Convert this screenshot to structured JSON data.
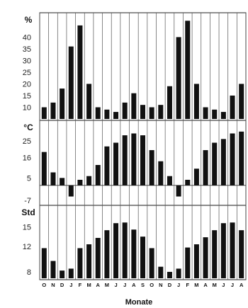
{
  "chart_data": {
    "type": "bar",
    "xlabel": "Monate",
    "categories": [
      "O",
      "N",
      "D",
      "J",
      "F",
      "M",
      "A",
      "M",
      "J",
      "J",
      "A",
      "S",
      "O",
      "N",
      "D",
      "J",
      "F",
      "M",
      "A",
      "M",
      "J",
      "J",
      "A"
    ],
    "panels": [
      {
        "name": "precipitation",
        "unit_label": "%",
        "yticks": [
          10,
          15,
          20,
          25,
          30,
          35,
          40
        ],
        "ylim": [
          5,
          48
        ],
        "baseline": 5,
        "values": [
          10,
          12,
          18,
          36,
          45,
          20,
          10,
          9,
          8,
          12,
          16,
          11,
          10,
          11,
          19,
          40,
          47,
          20,
          10,
          9,
          8,
          15,
          20
        ]
      },
      {
        "name": "temperature",
        "unit_label": "°C",
        "yticks": [
          -7,
          5,
          16,
          25
        ],
        "ylim": [
          -9,
          33
        ],
        "baseline": 1,
        "values": [
          19,
          8,
          5,
          -5,
          4,
          6,
          12,
          22,
          24,
          28,
          29,
          28,
          20,
          14,
          6,
          -5,
          4,
          10,
          20,
          24,
          26,
          29,
          30
        ]
      },
      {
        "name": "sunshine",
        "unit_label": "Std",
        "yticks": [
          8,
          12,
          15
        ],
        "ylim": [
          7,
          17.5
        ],
        "baseline": 7,
        "values": [
          11.7,
          9.7,
          8.2,
          8.5,
          11.7,
          12.3,
          13.3,
          14.5,
          15.6,
          15.7,
          14.6,
          13.5,
          11.7,
          8.8,
          8,
          8.5,
          11.8,
          12.3,
          13.4,
          14.5,
          15.6,
          15.7,
          14.5
        ]
      }
    ]
  }
}
